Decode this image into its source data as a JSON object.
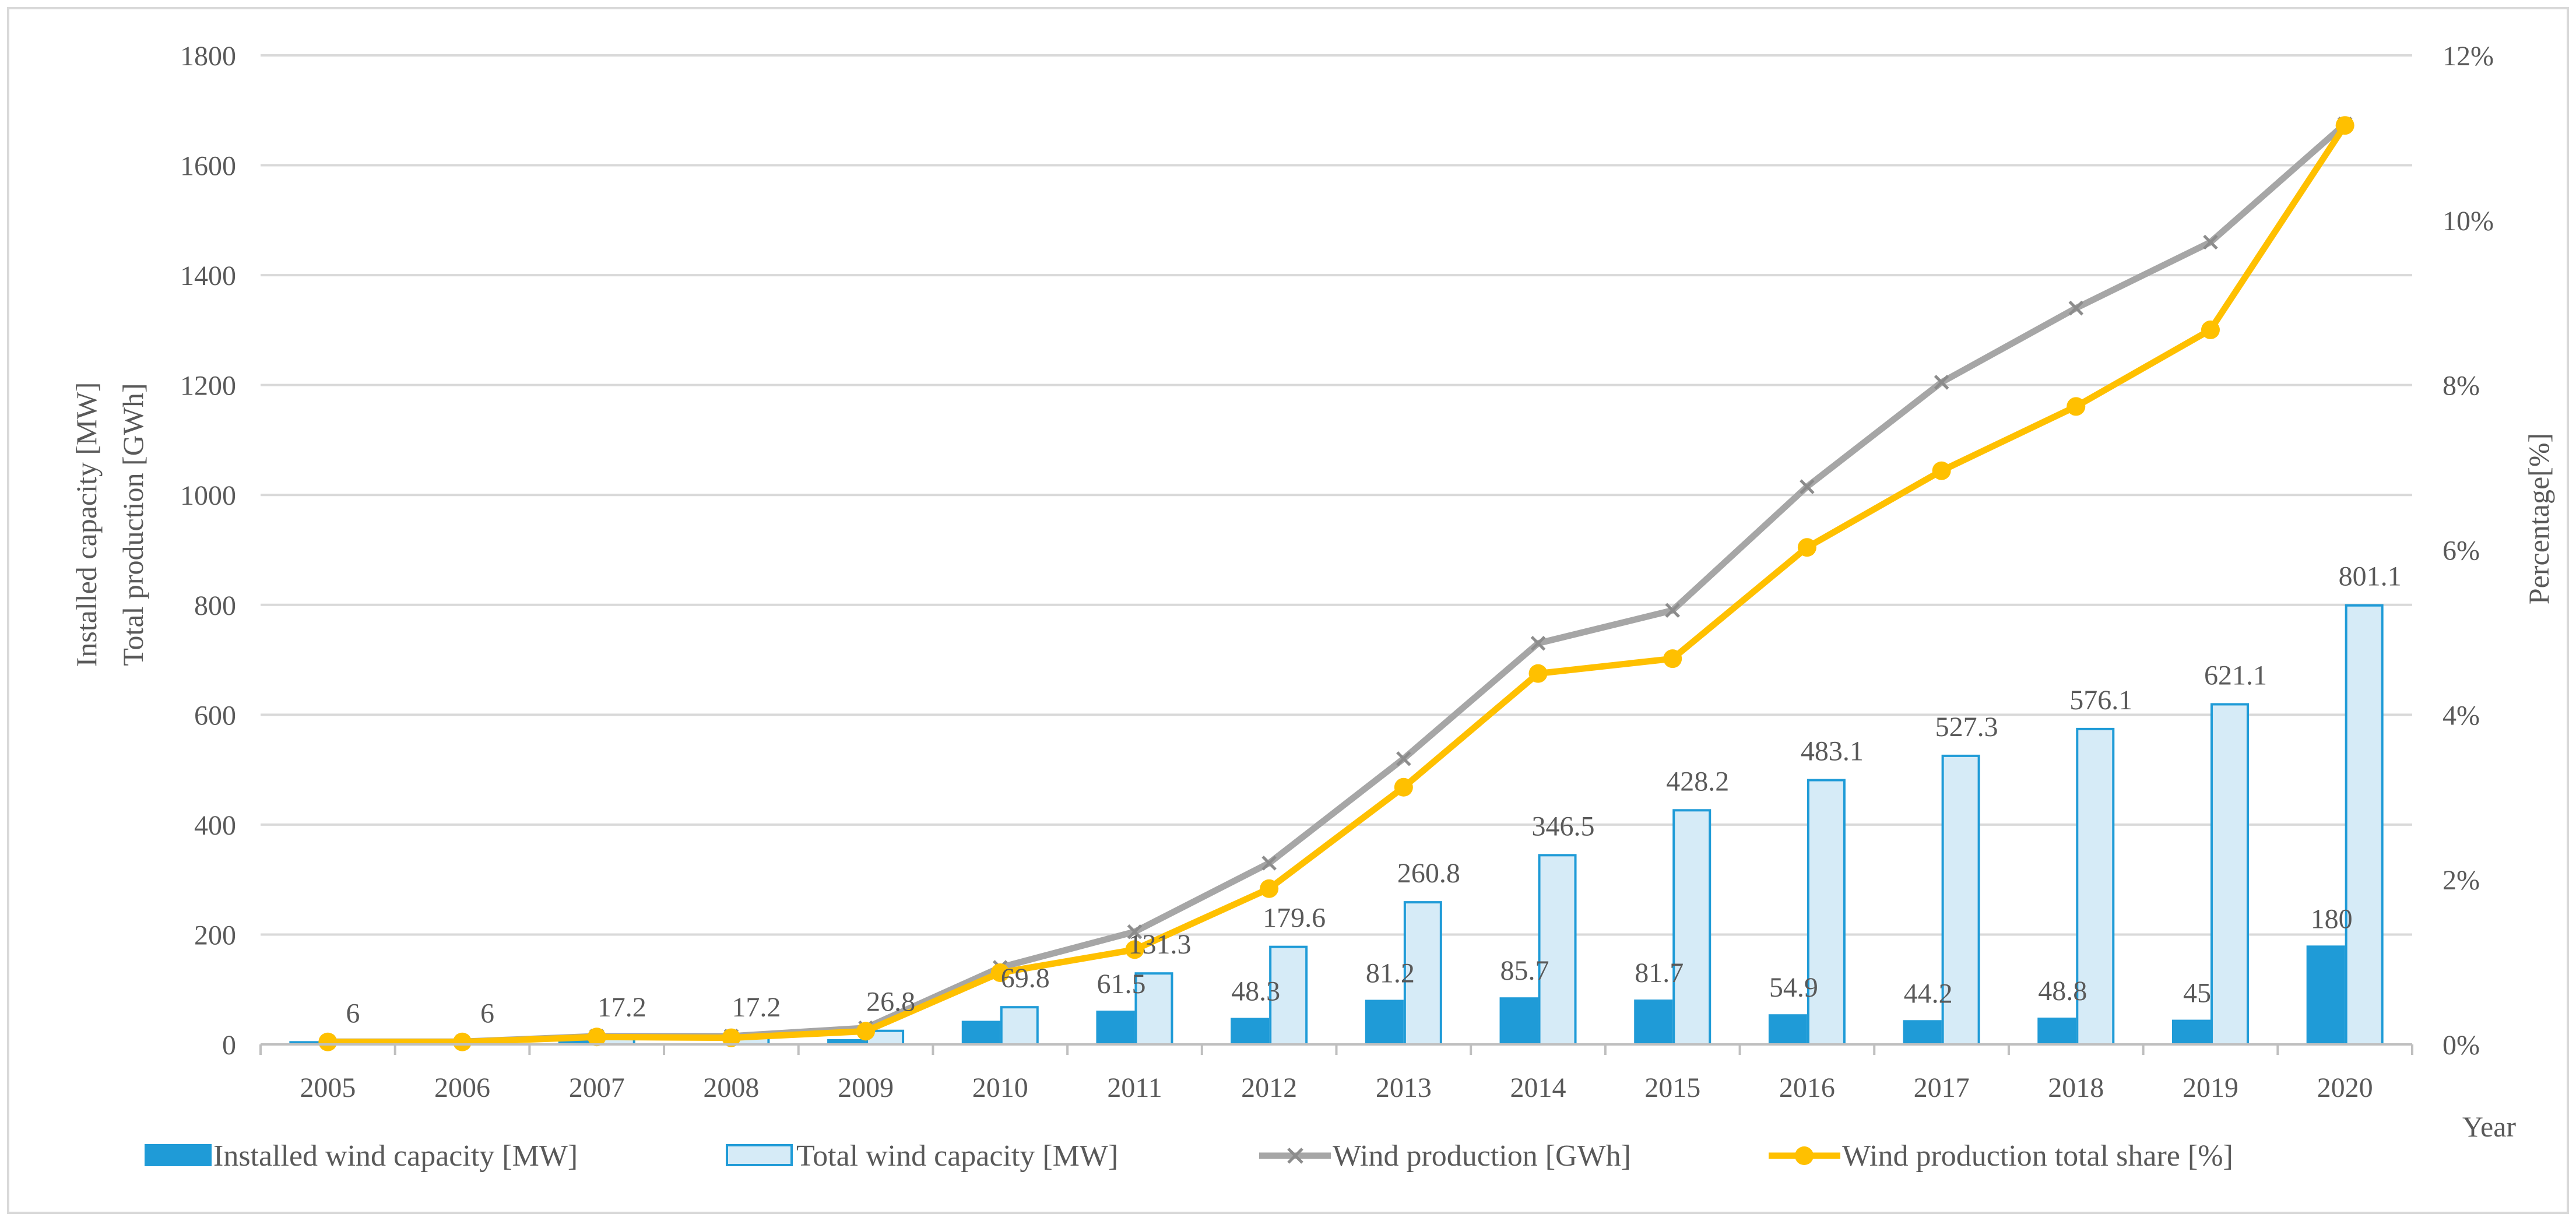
{
  "chart_data": {
    "type": "bar-line-combo",
    "categories": [
      "2005",
      "2006",
      "2007",
      "2008",
      "2009",
      "2010",
      "2011",
      "2012",
      "2013",
      "2014",
      "2015",
      "2016",
      "2017",
      "2018",
      "2019",
      "2020"
    ],
    "series": [
      {
        "name": "Installed wind capacity [MW]",
        "type": "bar",
        "axis": "left",
        "color": "#1f9bd7",
        "values": [
          6,
          0,
          11.2,
          0,
          9.6,
          43,
          61.5,
          48.3,
          81.2,
          85.7,
          81.7,
          54.9,
          44.2,
          48.8,
          45,
          180
        ],
        "labels": [
          "",
          "",
          "",
          "",
          "",
          "",
          "61.5",
          "48.3",
          "81.2",
          "85.7",
          "81.7",
          "54.9",
          "44.2",
          "48.8",
          "45",
          "180"
        ]
      },
      {
        "name": "Total wind capacity [MW]",
        "type": "bar",
        "axis": "left",
        "color": "#d6ebf7",
        "edge": "#1f9bd7",
        "values": [
          6,
          6,
          17.2,
          17.2,
          26.8,
          69.8,
          131.3,
          179.6,
          260.8,
          346.5,
          428.2,
          483.1,
          527.3,
          576.1,
          621.1,
          801.1
        ],
        "labels": [
          "6",
          "6",
          "17.2",
          "17.2",
          "26.8",
          "69.8",
          "131.3",
          "179.6",
          "260.8",
          "346.5",
          "428.2",
          "483.1",
          "527.3",
          "576.1",
          "621.1",
          "801.1"
        ]
      },
      {
        "name": "Wind production [GWh]",
        "type": "line",
        "axis": "left",
        "color": "#a6a6a6",
        "marker": "x",
        "values": [
          5,
          5,
          15,
          15,
          30,
          140,
          205,
          330,
          520,
          730,
          790,
          1015,
          1205,
          1340,
          1460,
          1675
        ]
      },
      {
        "name": "Wind production total share [%]",
        "type": "line",
        "axis": "right",
        "color": "#ffc000",
        "marker": "circle",
        "values": [
          0.03,
          0.03,
          0.09,
          0.08,
          0.16,
          0.87,
          1.15,
          1.89,
          3.12,
          4.5,
          4.68,
          6.03,
          6.96,
          7.74,
          8.67,
          11.15
        ]
      }
    ],
    "ylabel": "Installed capacity [MW]",
    "ylabel2": "Total production [GWh]",
    "y2label": "Percentage[%]",
    "xlabel": "Year",
    "ylim": [
      0,
      1800
    ],
    "yticks": [
      "0",
      "200",
      "400",
      "600",
      "800",
      "1000",
      "1200",
      "1400",
      "1600",
      "1800"
    ],
    "y2lim": [
      0,
      12
    ],
    "y2ticks": [
      "0%",
      "2%",
      "4%",
      "6%",
      "8%",
      "10%",
      "12%"
    ],
    "grid": true,
    "legend_position": "bottom"
  }
}
